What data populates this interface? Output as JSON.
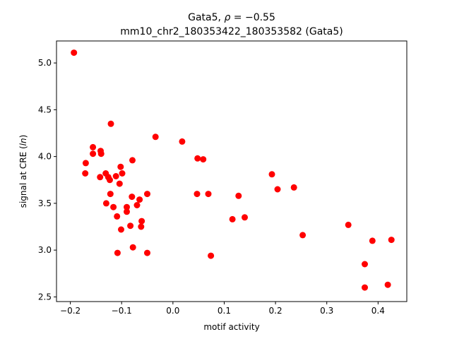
{
  "chart_data": {
    "type": "scatter",
    "title_line1": "Gata5, ρ = −0.55",
    "title_line2": "mm10_chr2_180353422_180353582 (Gata5)",
    "xlabel": "motif activity",
    "ylabel": "signal at CRE (ln)",
    "xlim": [
      -0.227,
      0.456
    ],
    "ylim": [
      2.45,
      5.235
    ],
    "x_ticks": [
      -0.2,
      -0.1,
      0.0,
      0.1,
      0.2,
      0.3,
      0.4
    ],
    "x_tick_labels": [
      "−0.2",
      "−0.1",
      "0.0",
      "0.1",
      "0.2",
      "0.3",
      "0.4"
    ],
    "y_ticks": [
      2.5,
      3.0,
      3.5,
      4.0,
      4.5,
      5.0
    ],
    "y_tick_labels": [
      "2.5",
      "3.0",
      "3.5",
      "4.0",
      "4.5",
      "5.0"
    ],
    "marker_color": "#ff0000",
    "grid": false,
    "points": [
      {
        "x": -0.193,
        "y": 5.11
      },
      {
        "x": -0.121,
        "y": 4.35
      },
      {
        "x": -0.034,
        "y": 4.21
      },
      {
        "x": 0.018,
        "y": 4.16
      },
      {
        "x": -0.156,
        "y": 4.1
      },
      {
        "x": -0.141,
        "y": 4.06
      },
      {
        "x": -0.156,
        "y": 4.03
      },
      {
        "x": -0.14,
        "y": 4.03
      },
      {
        "x": 0.048,
        "y": 3.98
      },
      {
        "x": 0.059,
        "y": 3.97
      },
      {
        "x": -0.079,
        "y": 3.96
      },
      {
        "x": -0.17,
        "y": 3.93
      },
      {
        "x": -0.102,
        "y": 3.89
      },
      {
        "x": -0.171,
        "y": 3.82
      },
      {
        "x": -0.131,
        "y": 3.82
      },
      {
        "x": -0.099,
        "y": 3.82
      },
      {
        "x": 0.193,
        "y": 3.81
      },
      {
        "x": -0.142,
        "y": 3.78
      },
      {
        "x": -0.126,
        "y": 3.78
      },
      {
        "x": -0.111,
        "y": 3.79
      },
      {
        "x": -0.123,
        "y": 3.75
      },
      {
        "x": -0.104,
        "y": 3.71
      },
      {
        "x": 0.236,
        "y": 3.67
      },
      {
        "x": 0.204,
        "y": 3.65
      },
      {
        "x": -0.122,
        "y": 3.6
      },
      {
        "x": -0.05,
        "y": 3.6
      },
      {
        "x": 0.047,
        "y": 3.6
      },
      {
        "x": 0.069,
        "y": 3.6
      },
      {
        "x": 0.128,
        "y": 3.58
      },
      {
        "x": -0.08,
        "y": 3.57
      },
      {
        "x": -0.065,
        "y": 3.54
      },
      {
        "x": -0.13,
        "y": 3.5
      },
      {
        "x": -0.07,
        "y": 3.48
      },
      {
        "x": -0.116,
        "y": 3.46
      },
      {
        "x": -0.09,
        "y": 3.46
      },
      {
        "x": -0.09,
        "y": 3.41
      },
      {
        "x": -0.109,
        "y": 3.36
      },
      {
        "x": 0.14,
        "y": 3.35
      },
      {
        "x": 0.116,
        "y": 3.33
      },
      {
        "x": -0.061,
        "y": 3.31
      },
      {
        "x": 0.342,
        "y": 3.27
      },
      {
        "x": -0.083,
        "y": 3.26
      },
      {
        "x": -0.062,
        "y": 3.25
      },
      {
        "x": -0.101,
        "y": 3.22
      },
      {
        "x": 0.253,
        "y": 3.16
      },
      {
        "x": 0.426,
        "y": 3.11
      },
      {
        "x": 0.389,
        "y": 3.1
      },
      {
        "x": -0.078,
        "y": 3.03
      },
      {
        "x": -0.108,
        "y": 2.97
      },
      {
        "x": -0.05,
        "y": 2.97
      },
      {
        "x": 0.074,
        "y": 2.94
      },
      {
        "x": 0.374,
        "y": 2.85
      },
      {
        "x": 0.419,
        "y": 2.63
      },
      {
        "x": 0.374,
        "y": 2.6
      }
    ]
  }
}
